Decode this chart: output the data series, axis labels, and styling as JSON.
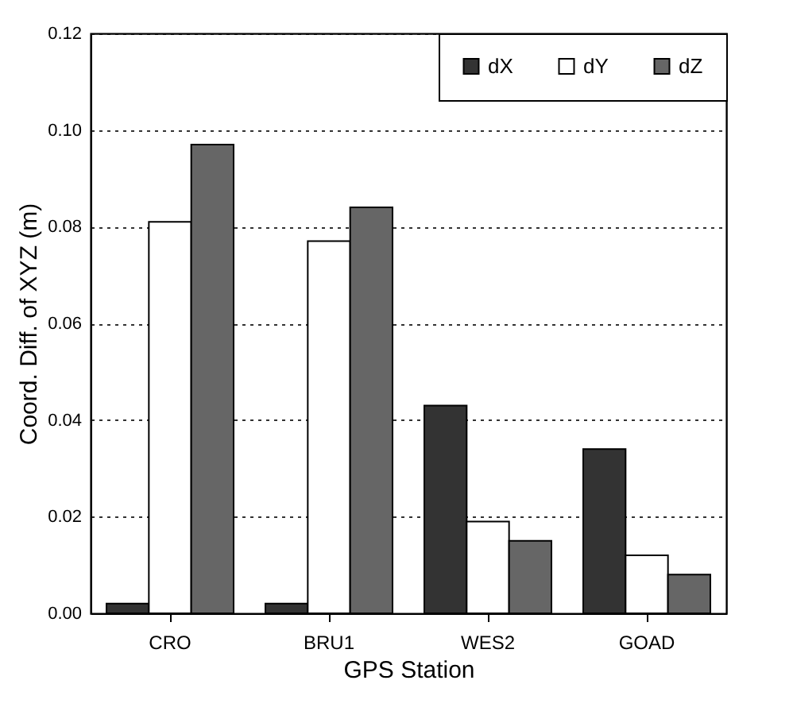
{
  "chart_data": {
    "type": "bar",
    "xlabel": "GPS Station",
    "ylabel": "Coord. Diff. of XYZ (m)",
    "categories": [
      "CRO",
      "BRU1",
      "WES2",
      "GOAD"
    ],
    "series": [
      {
        "name": "dX",
        "color": "#333333",
        "values": [
          0.002,
          0.002,
          0.043,
          0.034
        ]
      },
      {
        "name": "dY",
        "color": "#ffffff",
        "values": [
          0.081,
          0.077,
          0.019,
          0.012
        ]
      },
      {
        "name": "dZ",
        "color": "#666666",
        "values": [
          0.097,
          0.084,
          0.015,
          0.008
        ]
      }
    ],
    "ylim": [
      0,
      0.12
    ],
    "yticks": [
      {
        "value": 0,
        "label": "0.00"
      },
      {
        "value": 0.02,
        "label": "0.02"
      },
      {
        "value": 0.04,
        "label": "0.04"
      },
      {
        "value": 0.06,
        "label": "0.06"
      },
      {
        "value": 0.08,
        "label": "0.08"
      },
      {
        "value": 0.1,
        "label": "0.10"
      },
      {
        "value": 0.12,
        "label": "0.12"
      }
    ],
    "grid": "y",
    "legend": "top right"
  }
}
